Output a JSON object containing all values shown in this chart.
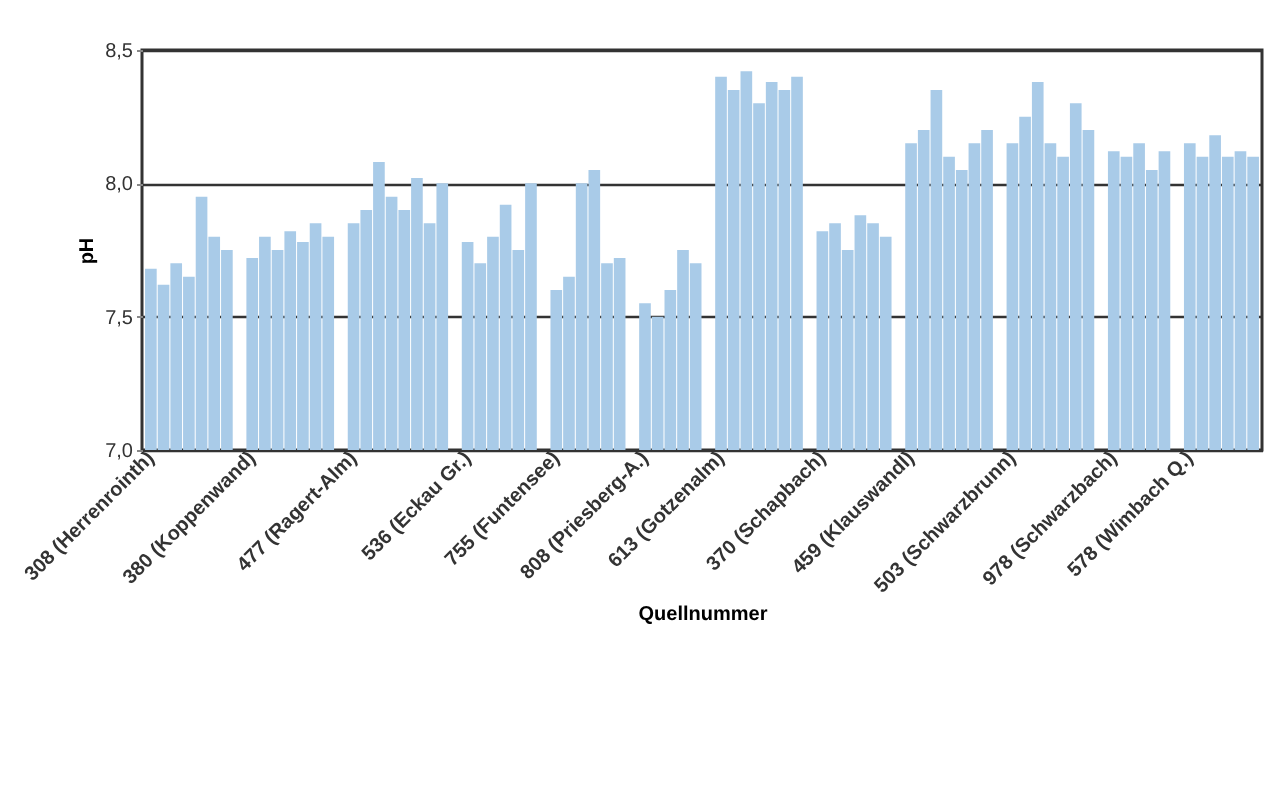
{
  "chart_data": {
    "type": "bar",
    "xlabel": "Quellnummer",
    "ylabel": "pH",
    "categories": [
      "308 (Herrenrointh)",
      null,
      null,
      null,
      null,
      null,
      null,
      null,
      "380 (Koppenwand)",
      null,
      null,
      null,
      null,
      null,
      null,
      null,
      "477 (Ragert-Alm)",
      null,
      null,
      null,
      null,
      null,
      null,
      null,
      null,
      "536 (Eckau Gr.)",
      null,
      null,
      null,
      null,
      null,
      null,
      "755 (Funtensee)",
      null,
      null,
      null,
      null,
      null,
      null,
      "808 (Priesberg-A.)",
      null,
      null,
      null,
      null,
      null,
      "613 (Gotzenalm)",
      null,
      null,
      null,
      null,
      null,
      null,
      null,
      "370 (Schapbach)",
      null,
      null,
      null,
      null,
      null,
      null,
      "459 (Klauswandl)",
      null,
      null,
      null,
      null,
      null,
      null,
      null,
      "503 (Schwarzbrunn)",
      null,
      null,
      null,
      null,
      null,
      null,
      null,
      "978 (Schwarzbach)",
      null,
      null,
      null,
      null,
      null,
      "578 (Wimbach Q.)",
      null,
      null,
      null,
      null,
      null
    ],
    "series": [
      {
        "color": "#a9cbe8",
        "values": [
          7.68,
          7.62,
          7.7,
          7.65,
          7.95,
          7.8,
          7.75,
          null,
          7.72,
          7.8,
          7.75,
          7.82,
          7.78,
          7.85,
          7.8,
          null,
          7.85,
          7.9,
          8.08,
          7.95,
          7.9,
          8.02,
          7.85,
          8.0,
          null,
          7.78,
          7.7,
          7.8,
          7.92,
          7.75,
          8.0,
          null,
          7.6,
          7.65,
          8.0,
          8.05,
          7.7,
          7.72,
          null,
          7.55,
          7.5,
          7.6,
          7.75,
          7.7,
          null,
          8.4,
          8.35,
          8.42,
          8.3,
          8.38,
          8.35,
          8.4,
          null,
          7.82,
          7.85,
          7.75,
          7.88,
          7.85,
          7.8,
          null,
          8.15,
          8.2,
          8.35,
          8.1,
          8.05,
          8.15,
          8.2,
          null,
          8.15,
          8.25,
          8.38,
          8.15,
          8.1,
          8.3,
          8.2,
          null,
          8.12,
          8.1,
          8.15,
          8.05,
          8.12,
          null,
          8.15,
          8.1,
          8.18,
          8.1,
          8.12,
          8.1
        ]
      }
    ],
    "ylim": [
      7.0,
      8.5
    ],
    "yticks": [
      {
        "value": 7.0,
        "label": "7,0"
      },
      {
        "value": 7.5,
        "label": "7,5"
      },
      {
        "value": 8.0,
        "label": "8,0"
      },
      {
        "value": 8.5,
        "label": "8,5"
      }
    ],
    "grid": "y",
    "legend": false
  }
}
